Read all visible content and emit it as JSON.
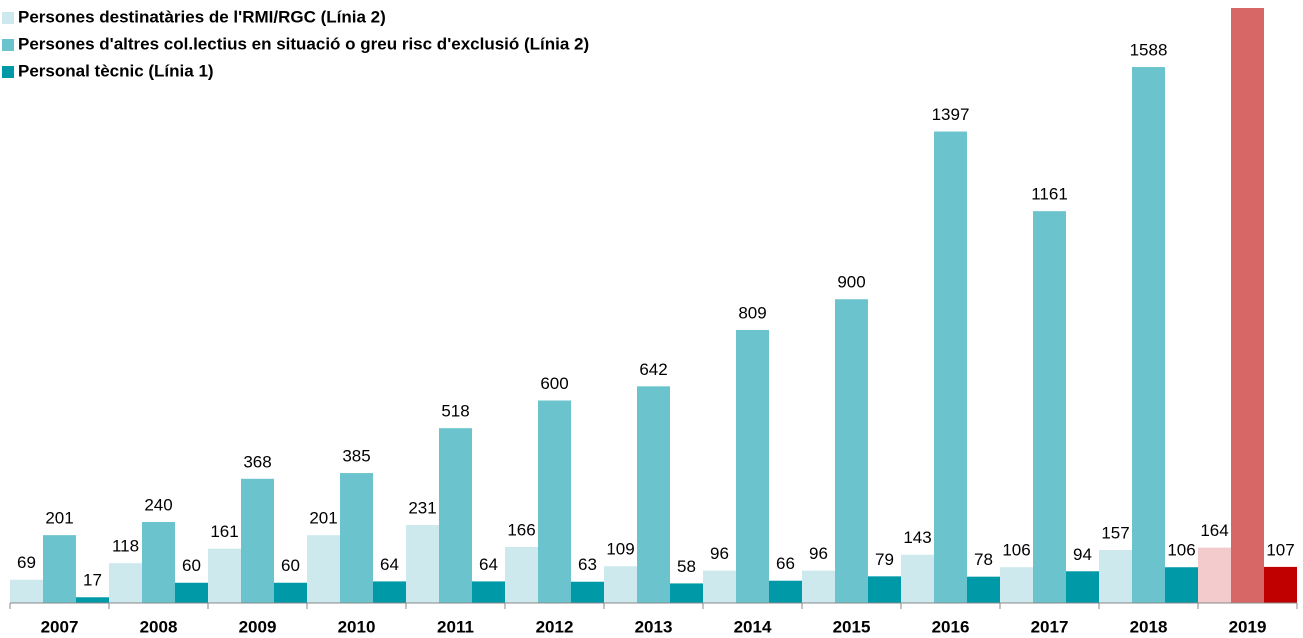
{
  "chart_data": {
    "type": "bar",
    "categories": [
      "2007",
      "2008",
      "2009",
      "2010",
      "2011",
      "2012",
      "2013",
      "2014",
      "2015",
      "2016",
      "2017",
      "2018",
      "2019"
    ],
    "series": [
      {
        "name": "Persones destinatàries de l'RMI/RGC (Línia 2)",
        "color": "#cde9ee",
        "colors": [
          "#cde9ee",
          "#cde9ee",
          "#cde9ee",
          "#cde9ee",
          "#cde9ee",
          "#cde9ee",
          "#cde9ee",
          "#cde9ee",
          "#cde9ee",
          "#cde9ee",
          "#cde9ee",
          "#cde9ee",
          "#f3cbcd"
        ],
        "values": [
          69,
          118,
          161,
          201,
          231,
          166,
          109,
          96,
          96,
          143,
          106,
          157,
          164
        ]
      },
      {
        "name": "Persones d'altres col.lectius en situació o greu risc d'exclusió (Línia 2)",
        "color": "#6ac3cd",
        "colors": [
          "#6ac3cd",
          "#6ac3cd",
          "#6ac3cd",
          "#6ac3cd",
          "#6ac3cd",
          "#6ac3cd",
          "#6ac3cd",
          "#6ac3cd",
          "#6ac3cd",
          "#6ac3cd",
          "#6ac3cd",
          "#6ac3cd",
          "#d76767"
        ],
        "values": [
          201,
          240,
          368,
          385,
          518,
          600,
          642,
          809,
          900,
          1397,
          1161,
          1588,
          1800
        ]
      },
      {
        "name": "Personal tècnic (Línia 1)",
        "color": "#0099a8",
        "colors": [
          "#0099a8",
          "#0099a8",
          "#0099a8",
          "#0099a8",
          "#0099a8",
          "#0099a8",
          "#0099a8",
          "#0099a8",
          "#0099a8",
          "#0099a8",
          "#0099a8",
          "#0099a8",
          "#c00000"
        ],
        "values": [
          17,
          60,
          60,
          64,
          64,
          63,
          58,
          66,
          79,
          78,
          94,
          106,
          107
        ]
      }
    ],
    "ylim": [
      0,
      1763
    ]
  }
}
